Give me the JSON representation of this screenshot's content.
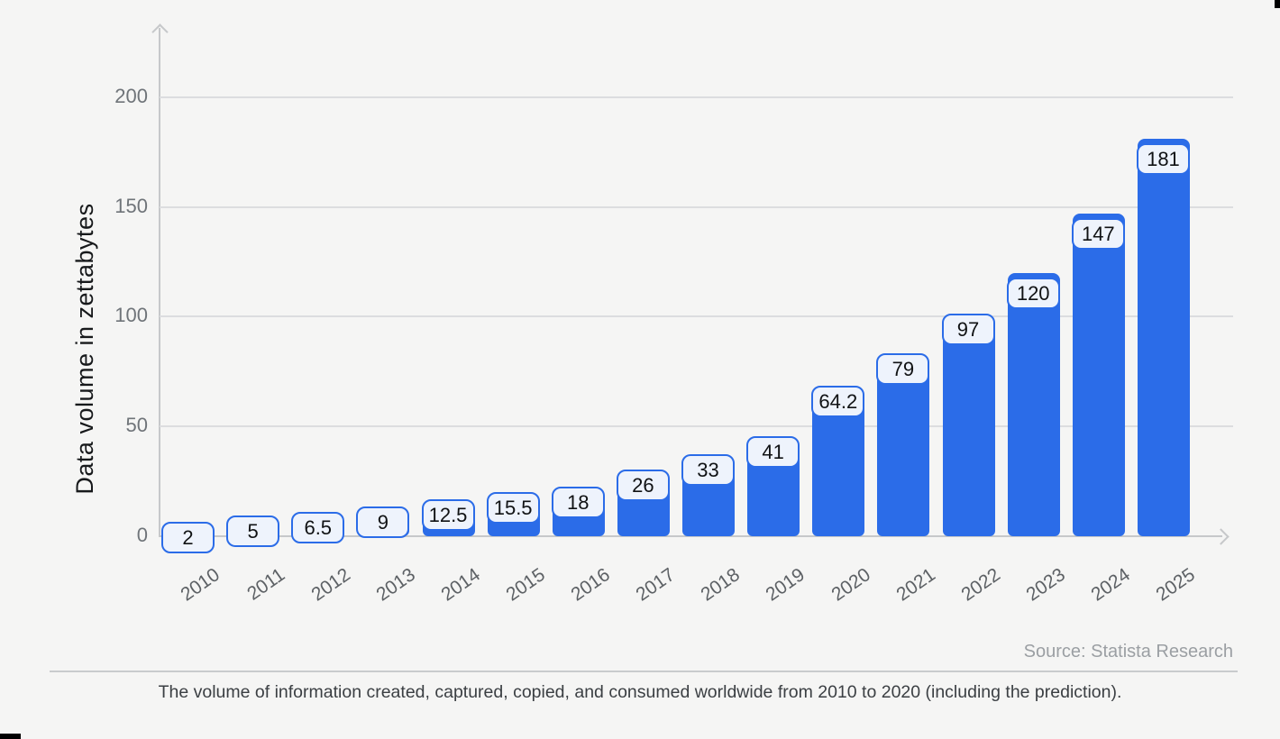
{
  "chart_data": {
    "type": "bar",
    "categories": [
      "2010",
      "2011",
      "2012",
      "2013",
      "2014",
      "2015",
      "2016",
      "2017",
      "2018",
      "2019",
      "2020",
      "2021",
      "2022",
      "2023",
      "2024",
      "2025"
    ],
    "values": [
      2,
      5,
      6.5,
      9,
      12.5,
      15.5,
      18,
      26,
      33,
      41,
      64.2,
      79,
      97,
      120,
      147,
      181
    ],
    "value_labels": [
      "2",
      "5",
      "6.5",
      "9",
      "12.5",
      "15.5",
      "18",
      "26",
      "33",
      "41",
      "64.2",
      "79",
      "97",
      "120",
      "147",
      "181"
    ],
    "title": "",
    "xlabel": "",
    "ylabel": "Data volume in zettabytes",
    "yticks": [
      0,
      50,
      100,
      150,
      200
    ],
    "ylim": [
      0,
      232
    ],
    "grid": "horizontal gridlines on",
    "legend": "none",
    "colors": {
      "background": "#f5f5f4",
      "bar": "#2b6ce8",
      "chip_background": "#eef3fc",
      "chip_border": "#2b6ce8",
      "gridline": "#dcdddf",
      "axis": "#c6c8ca",
      "tick_text": "#6f7479",
      "category_text": "#5d6165"
    }
  },
  "footer": {
    "source": "Source: Statista Research",
    "caption": "The volume of information created, captured, copied, and consumed worldwide from 2010 to 2020 (including the prediction)."
  }
}
